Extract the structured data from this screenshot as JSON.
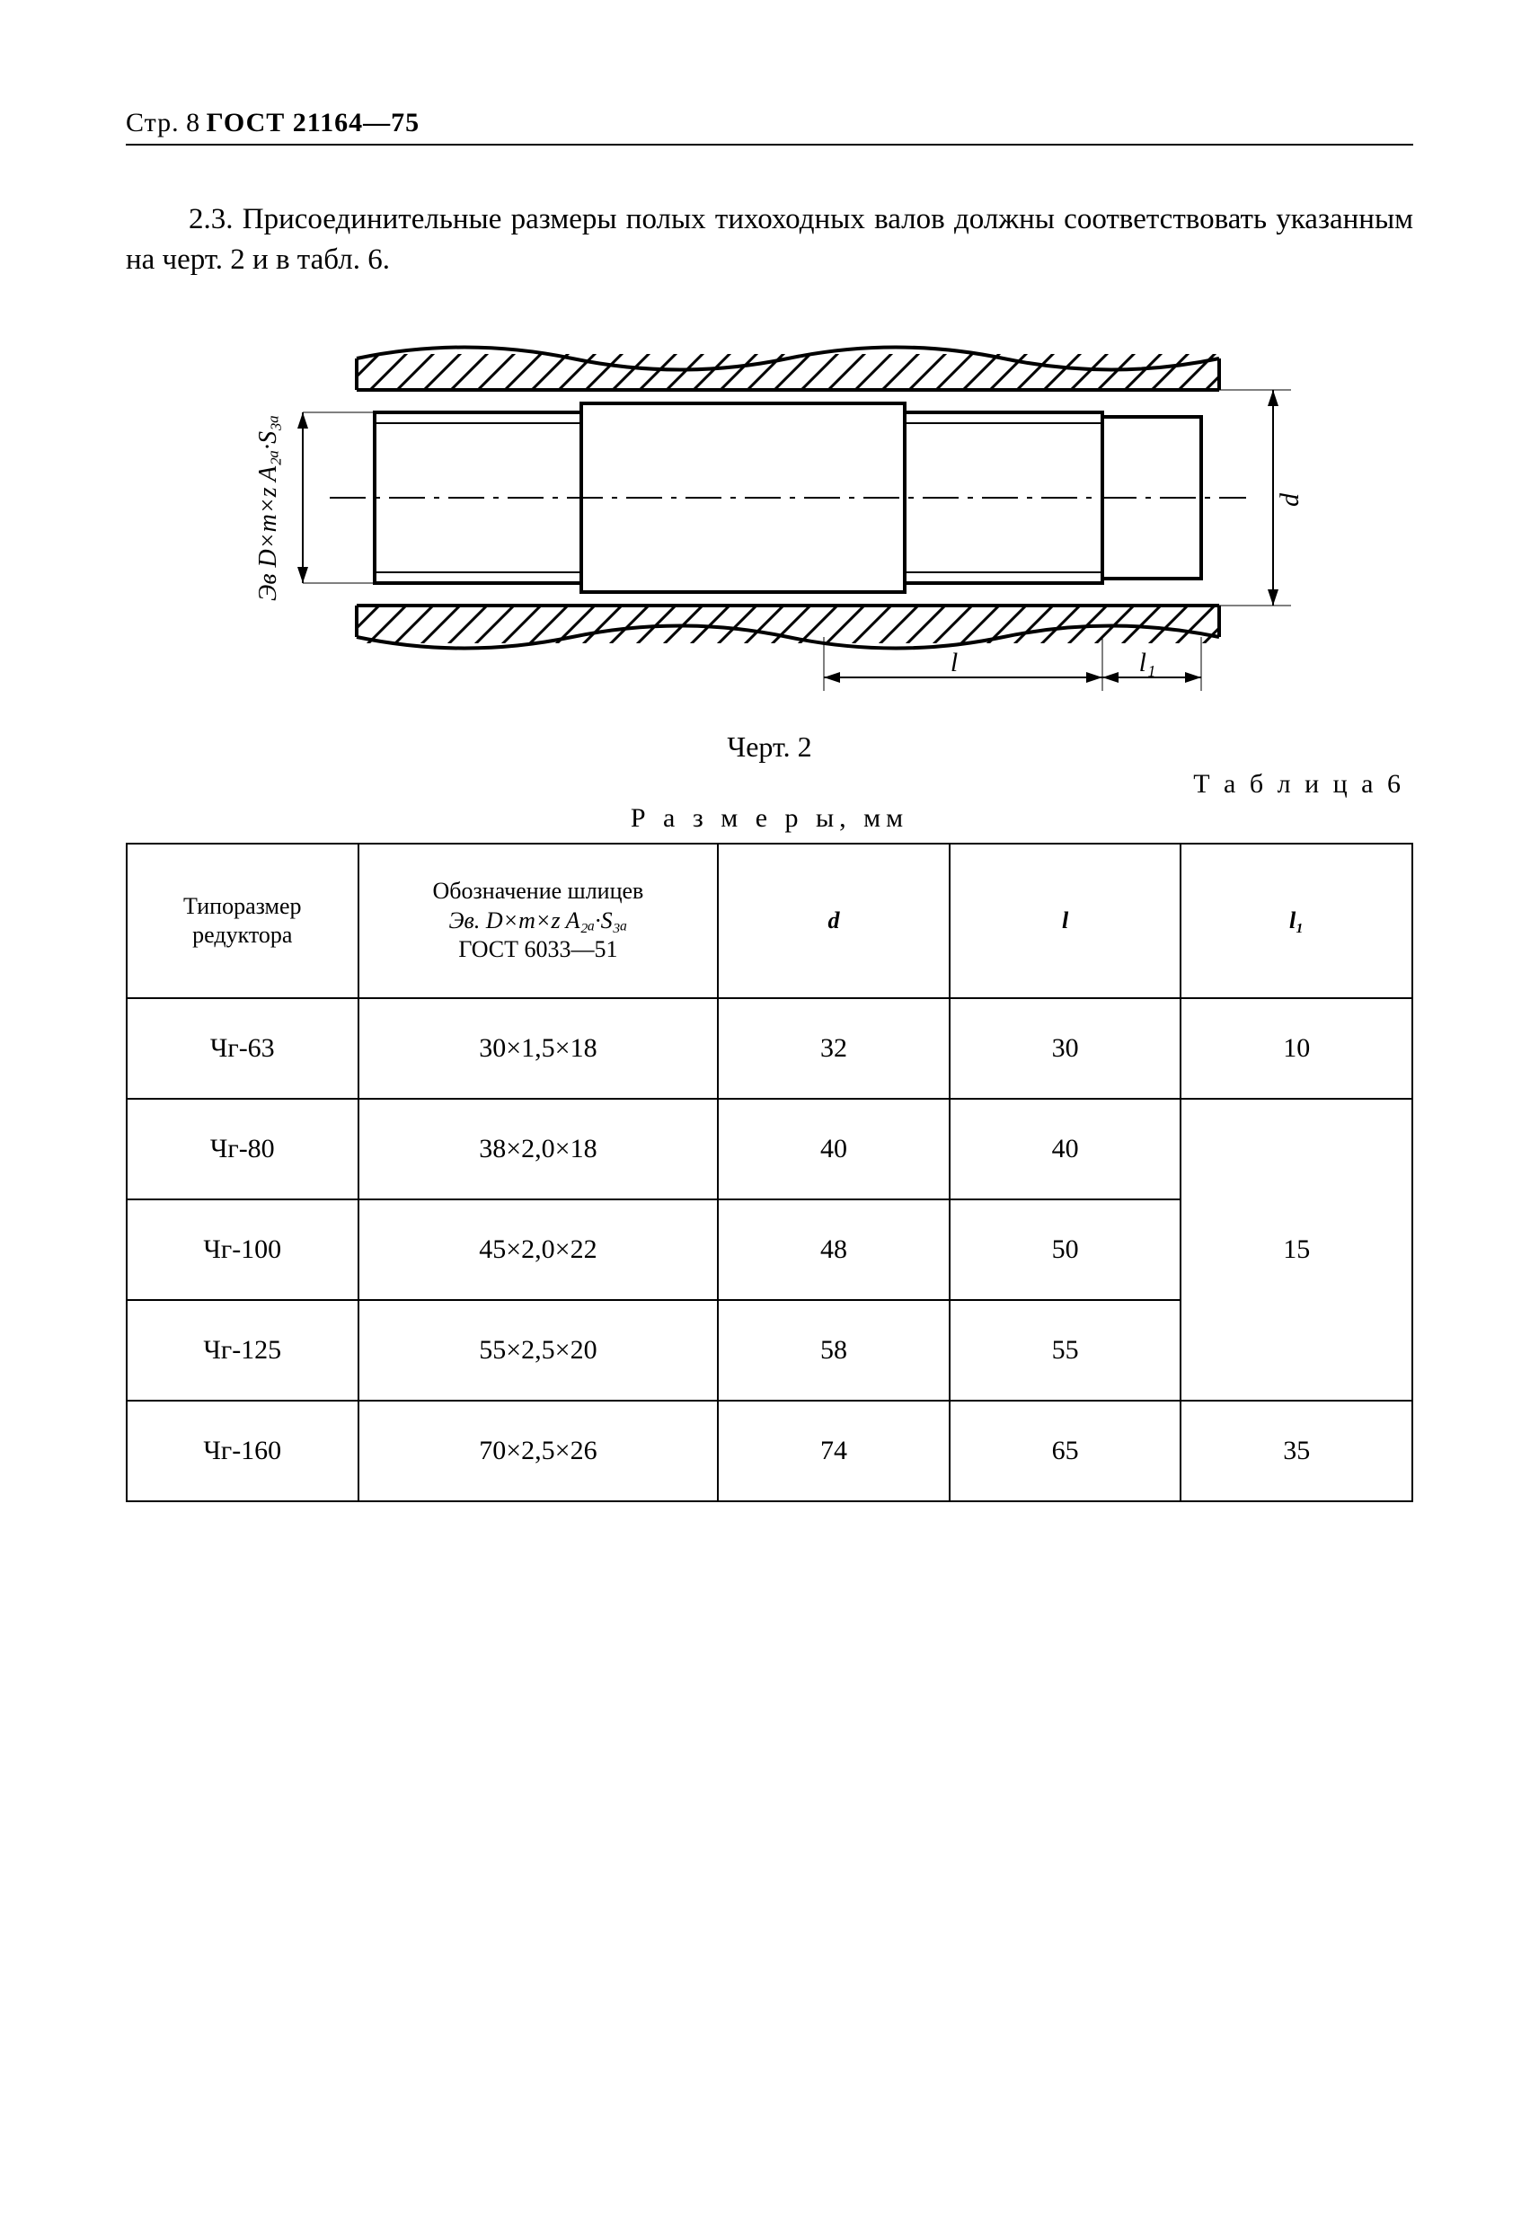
{
  "header": {
    "page_prefix": "Стр.",
    "page_number": "8",
    "standard": "ГОСТ 21164—75"
  },
  "paragraph": {
    "number": "2.3.",
    "text": "Присоединительные размеры полых тихоходных валов должны соответствовать указанным на черт. 2 и в табл. 6."
  },
  "figure": {
    "caption": "Черт. 2",
    "label_side": "Эв D×m×z A₂ₐ·S₃ₐ",
    "label_d": "d",
    "label_l": "l",
    "label_l1": "l₁"
  },
  "table": {
    "label": "Т а б л и ц а  6",
    "title": "Р а з м е р ы,  мм",
    "columns": {
      "type": "Типоразмер\nредуктора",
      "spline_line1": "Обозначение шлицев",
      "spline_line2": "Эв. D×m×z A₂ₐ·S₃ₐ",
      "spline_line3": "ГОСТ 6033—51",
      "d": "d",
      "l": "l",
      "l1": "l₁"
    },
    "rows": [
      {
        "type": "Чг-63",
        "spline": "30×1,5×18",
        "d": "32",
        "l": "30",
        "l1": "10",
        "l1_rowspan": 1
      },
      {
        "type": "Чг-80",
        "spline": "38×2,0×18",
        "d": "40",
        "l": "40",
        "l1": "15",
        "l1_rowspan": 3
      },
      {
        "type": "Чг-100",
        "spline": "45×2,0×22",
        "d": "48",
        "l": "50"
      },
      {
        "type": "Чг-125",
        "spline": "55×2,5×20",
        "d": "58",
        "l": "55"
      },
      {
        "type": "Чг-160",
        "spline": "70×2,5×26",
        "d": "74",
        "l": "65",
        "l1": "35",
        "l1_rowspan": 1
      }
    ]
  },
  "style": {
    "text_color": "#000000",
    "background": "#ffffff",
    "stroke_width_thin": 2,
    "stroke_width_thick": 4
  }
}
